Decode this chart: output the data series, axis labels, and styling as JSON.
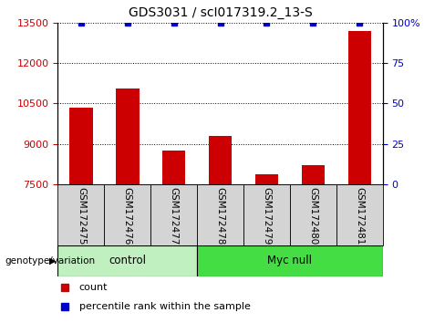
{
  "title": "GDS3031 / scI017319.2_13-S",
  "samples": [
    "GSM172475",
    "GSM172476",
    "GSM172477",
    "GSM172478",
    "GSM172479",
    "GSM172480",
    "GSM172481"
  ],
  "counts": [
    10350,
    11050,
    8750,
    9300,
    7850,
    8200,
    13200
  ],
  "percentile_ranks": [
    100,
    100,
    100,
    100,
    100,
    100,
    100
  ],
  "groups": [
    {
      "label": "control",
      "indices": [
        0,
        1,
        2
      ],
      "color": "#c0f0c0"
    },
    {
      "label": "Myc null",
      "indices": [
        3,
        4,
        5,
        6
      ],
      "color": "#44dd44"
    }
  ],
  "ylim_left": [
    7500,
    13500
  ],
  "yticks_left": [
    7500,
    9000,
    10500,
    12000,
    13500
  ],
  "ylim_right": [
    0,
    100
  ],
  "yticks_right": [
    0,
    25,
    50,
    75,
    100
  ],
  "bar_color": "#cc0000",
  "marker_color": "#0000cc",
  "grid_color": "#000000",
  "bg_color": "#ffffff",
  "tick_label_color_left": "#cc0000",
  "tick_label_color_right": "#0000cc",
  "legend_count_color": "#cc0000",
  "legend_pct_color": "#0000cc",
  "genotype_label": "genotype/variation",
  "legend_count_label": "count",
  "legend_pct_label": "percentile rank within the sample",
  "xticklabel_bg": "#d4d4d4",
  "bar_width": 0.5
}
